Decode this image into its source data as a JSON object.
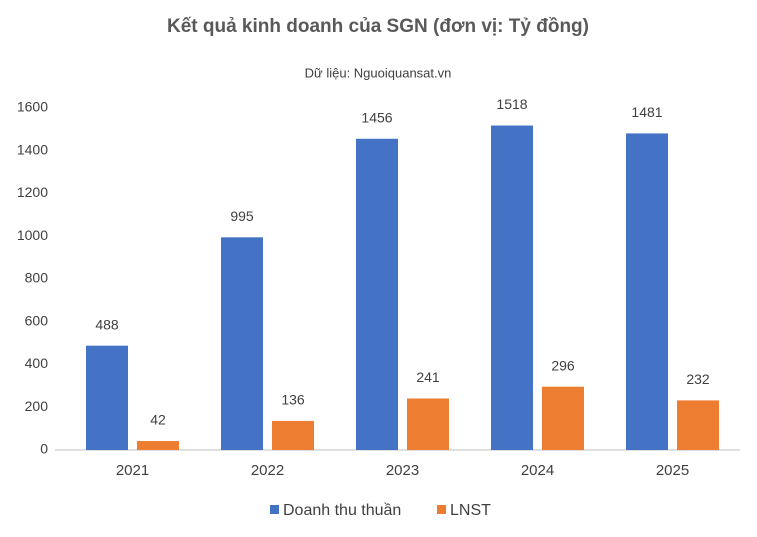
{
  "chart_data": {
    "type": "bar",
    "title": "Kết quả kinh doanh của SGN (đơn vị: Tỷ đồng)",
    "subtitle": "Dữ liệu: Nguoiquansat.vn",
    "categories": [
      "2021",
      "2022",
      "2023",
      "2024",
      "2025"
    ],
    "series": [
      {
        "name": "Doanh thu thuần",
        "color": "#4472c4",
        "values": [
          488,
          995,
          1456,
          1518,
          1481
        ]
      },
      {
        "name": "LNST",
        "color": "#ed7d31",
        "values": [
          42,
          136,
          241,
          296,
          232
        ]
      }
    ],
    "ylim": [
      0,
      1600
    ],
    "yticks": [
      0,
      200,
      400,
      600,
      800,
      1000,
      1200,
      1400,
      1600
    ],
    "grid": false,
    "legend": "bottom"
  }
}
